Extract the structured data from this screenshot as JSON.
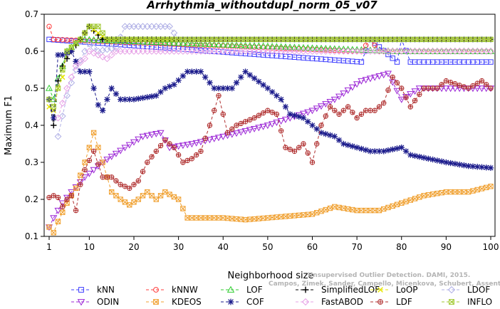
{
  "chart_data": {
    "type": "line",
    "title": "Arrhythmia_withoutdupl_norm_05_v07",
    "xlabel": "Neighborhood size",
    "ylabel": "Maximum F1",
    "xlim": [
      0,
      100
    ],
    "ylim": [
      0.1,
      0.7
    ],
    "xticks": [
      1,
      10,
      20,
      30,
      40,
      50,
      60,
      70,
      80,
      90,
      100
    ],
    "yticks": [
      0.1,
      0.2,
      0.3,
      0.4,
      0.5,
      0.6,
      0.7
    ],
    "grid": false,
    "legend_position": "bottom",
    "credit": {
      "line1": "Campos, Zimek, Sander, Campello, Micenkova, Schubert, Assent, Houle",
      "line2": "Unsupervised Outlier Detection. DAMI, 2015."
    },
    "x_start": 1,
    "series": [
      {
        "name": "kNN",
        "color": "#3c3cff",
        "marker": "square",
        "runs": [
          [
            1,
            0.632
          ],
          [
            71,
            0.571
          ],
          [
            73,
            0.632
          ],
          [
            79,
            0.571
          ],
          [
            80,
            0.632
          ],
          [
            82,
            0.571
          ],
          [
            100,
            0.571
          ]
        ]
      },
      {
        "name": "kNNW",
        "color": "#ff3c3c",
        "marker": "circle",
        "runs": [
          [
            1,
            0.667
          ],
          [
            2,
            0.632
          ],
          [
            71,
            0.6
          ],
          [
            73,
            0.632
          ],
          [
            75,
            0.6
          ],
          [
            100,
            0.6
          ]
        ]
      },
      {
        "name": "LOF",
        "color": "#32cd32",
        "marker": "triangle-up",
        "runs": [
          [
            1,
            0.5
          ],
          [
            2,
            0.47
          ],
          [
            3,
            0.526
          ],
          [
            4,
            0.56
          ],
          [
            5,
            0.6
          ],
          [
            8,
            0.632
          ],
          [
            79,
            0.6
          ],
          [
            100,
            0.6
          ]
        ]
      },
      {
        "name": "SimplifiedLOF",
        "color": "#000000",
        "marker": "plus",
        "runs": [
          [
            1,
            0.47
          ],
          [
            2,
            0.4
          ],
          [
            3,
            0.52
          ],
          [
            4,
            0.56
          ],
          [
            5,
            0.58
          ],
          [
            6,
            0.6
          ],
          [
            8,
            0.632
          ],
          [
            10,
            0.667
          ],
          [
            13,
            0.632
          ],
          [
            100,
            0.632
          ]
        ]
      },
      {
        "name": "LoOP",
        "color": "#e6e600",
        "marker": "x",
        "runs": [
          [
            1,
            0.45
          ],
          [
            2,
            0.44
          ],
          [
            3,
            0.5
          ],
          [
            4,
            0.53
          ],
          [
            5,
            0.6
          ],
          [
            8,
            0.632
          ],
          [
            10,
            0.667
          ],
          [
            14,
            0.632
          ],
          [
            100,
            0.632
          ]
        ]
      },
      {
        "name": "LDOF",
        "color": "#b0b0e6",
        "marker": "diamond",
        "runs": [
          [
            3,
            0.37
          ],
          [
            5,
            0.48
          ],
          [
            7,
            0.55
          ],
          [
            9,
            0.6
          ],
          [
            10,
            0.62
          ],
          [
            12,
            0.6
          ],
          [
            16,
            0.61
          ],
          [
            18,
            0.667
          ],
          [
            28,
            0.667
          ],
          [
            30,
            0.632
          ],
          [
            100,
            0.632
          ]
        ]
      },
      {
        "name": "ODIN",
        "color": "#9c27d6",
        "marker": "triangle-down",
        "runs": [
          [
            1,
            0.125
          ],
          [
            2,
            0.15
          ],
          [
            4,
            0.19
          ],
          [
            6,
            0.22
          ],
          [
            9,
            0.26
          ],
          [
            13,
            0.3
          ],
          [
            18,
            0.34
          ],
          [
            22,
            0.37
          ],
          [
            26,
            0.38
          ],
          [
            28,
            0.34
          ],
          [
            33,
            0.35
          ],
          [
            40,
            0.37
          ],
          [
            50,
            0.4
          ],
          [
            55,
            0.42
          ],
          [
            60,
            0.44
          ],
          [
            65,
            0.47
          ],
          [
            71,
            0.52
          ],
          [
            77,
            0.54
          ],
          [
            80,
            0.47
          ],
          [
            84,
            0.5
          ],
          [
            100,
            0.5
          ]
        ]
      },
      {
        "name": "KDEOS",
        "color": "#f0a030",
        "marker": "square-x",
        "runs": [
          [
            1,
            0.125
          ],
          [
            2,
            0.11
          ],
          [
            3,
            0.14
          ],
          [
            5,
            0.19
          ],
          [
            7,
            0.23
          ],
          [
            9,
            0.3
          ],
          [
            11,
            0.38
          ],
          [
            13,
            0.3
          ],
          [
            15,
            0.22
          ],
          [
            17,
            0.2
          ],
          [
            19,
            0.185
          ],
          [
            21,
            0.2
          ],
          [
            23,
            0.22
          ],
          [
            25,
            0.2
          ],
          [
            27,
            0.22
          ],
          [
            30,
            0.2
          ],
          [
            32,
            0.15
          ],
          [
            40,
            0.15
          ],
          [
            45,
            0.145
          ],
          [
            50,
            0.15
          ],
          [
            55,
            0.155
          ],
          [
            60,
            0.16
          ],
          [
            65,
            0.18
          ],
          [
            70,
            0.17
          ],
          [
            75,
            0.17
          ],
          [
            80,
            0.19
          ],
          [
            85,
            0.21
          ],
          [
            90,
            0.22
          ],
          [
            95,
            0.22
          ],
          [
            100,
            0.235
          ]
        ]
      },
      {
        "name": "COF",
        "color": "#1c1c8c",
        "marker": "asterisk",
        "runs": [
          [
            1,
            0.47
          ],
          [
            2,
            0.42
          ],
          [
            3,
            0.59
          ],
          [
            4,
            0.59
          ],
          [
            6,
            0.6
          ],
          [
            8,
            0.545
          ],
          [
            10,
            0.545
          ],
          [
            11,
            0.5
          ],
          [
            12,
            0.455
          ],
          [
            13,
            0.44
          ],
          [
            15,
            0.5
          ],
          [
            17,
            0.47
          ],
          [
            20,
            0.47
          ],
          [
            25,
            0.48
          ],
          [
            27,
            0.5
          ],
          [
            29,
            0.51
          ],
          [
            32,
            0.545
          ],
          [
            35,
            0.545
          ],
          [
            38,
            0.5
          ],
          [
            42,
            0.5
          ],
          [
            45,
            0.545
          ],
          [
            50,
            0.5
          ],
          [
            53,
            0.47
          ],
          [
            55,
            0.43
          ],
          [
            58,
            0.42
          ],
          [
            60,
            0.4
          ],
          [
            62,
            0.38
          ],
          [
            65,
            0.37
          ],
          [
            67,
            0.35
          ],
          [
            70,
            0.34
          ],
          [
            73,
            0.33
          ],
          [
            76,
            0.33
          ],
          [
            80,
            0.34
          ],
          [
            82,
            0.32
          ],
          [
            86,
            0.31
          ],
          [
            90,
            0.3
          ],
          [
            95,
            0.29
          ],
          [
            100,
            0.285
          ]
        ]
      },
      {
        "name": "FastABOD",
        "color": "#e6a0e6",
        "marker": "diamond",
        "runs": [
          [
            3,
            0.42
          ],
          [
            5,
            0.5
          ],
          [
            7,
            0.56
          ],
          [
            9,
            0.58
          ],
          [
            10,
            0.6
          ],
          [
            12,
            0.59
          ],
          [
            14,
            0.58
          ],
          [
            16,
            0.6
          ],
          [
            18,
            0.6
          ],
          [
            100,
            0.6
          ]
        ]
      },
      {
        "name": "LDF",
        "color": "#b03030",
        "marker": "circle-plus",
        "runs": [
          [
            1,
            0.205
          ],
          [
            2,
            0.21
          ],
          [
            3,
            0.205
          ],
          [
            4,
            0.18
          ],
          [
            5,
            0.2
          ],
          [
            6,
            0.21
          ],
          [
            7,
            0.17
          ],
          [
            8,
            0.24
          ],
          [
            9,
            0.28
          ],
          [
            11,
            0.33
          ],
          [
            13,
            0.26
          ],
          [
            15,
            0.26
          ],
          [
            17,
            0.24
          ],
          [
            19,
            0.23
          ],
          [
            21,
            0.25
          ],
          [
            23,
            0.3
          ],
          [
            25,
            0.33
          ],
          [
            27,
            0.36
          ],
          [
            29,
            0.34
          ],
          [
            31,
            0.3
          ],
          [
            33,
            0.31
          ],
          [
            35,
            0.33
          ],
          [
            37,
            0.4
          ],
          [
            39,
            0.48
          ],
          [
            41,
            0.38
          ],
          [
            43,
            0.4
          ],
          [
            45,
            0.41
          ],
          [
            47,
            0.42
          ],
          [
            50,
            0.44
          ],
          [
            52,
            0.43
          ],
          [
            54,
            0.34
          ],
          [
            56,
            0.33
          ],
          [
            58,
            0.35
          ],
          [
            60,
            0.3
          ],
          [
            62,
            0.4
          ],
          [
            64,
            0.45
          ],
          [
            66,
            0.43
          ],
          [
            68,
            0.45
          ],
          [
            70,
            0.42
          ],
          [
            72,
            0.44
          ],
          [
            74,
            0.44
          ],
          [
            76,
            0.46
          ],
          [
            78,
            0.53
          ],
          [
            80,
            0.5
          ],
          [
            82,
            0.45
          ],
          [
            85,
            0.5
          ],
          [
            88,
            0.5
          ],
          [
            90,
            0.52
          ],
          [
            95,
            0.5
          ],
          [
            98,
            0.52
          ],
          [
            100,
            0.5
          ]
        ]
      },
      {
        "name": "INFLO",
        "color": "#a0c830",
        "marker": "square-x",
        "runs": [
          [
            1,
            0.47
          ],
          [
            2,
            0.45
          ],
          [
            3,
            0.5
          ],
          [
            4,
            0.55
          ],
          [
            5,
            0.6
          ],
          [
            8,
            0.632
          ],
          [
            10,
            0.667
          ],
          [
            12,
            0.667
          ],
          [
            14,
            0.632
          ],
          [
            100,
            0.632
          ]
        ]
      }
    ]
  }
}
